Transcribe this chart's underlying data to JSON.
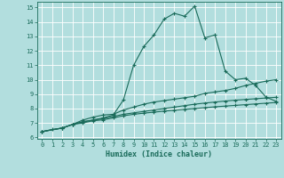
{
  "title": "",
  "xlabel": "Humidex (Indice chaleur)",
  "bg_color": "#b2dede",
  "line_color": "#1a6b5a",
  "grid_color": "#ffffff",
  "xlim": [
    -0.5,
    23.5
  ],
  "ylim": [
    5.9,
    15.4
  ],
  "xticks": [
    0,
    1,
    2,
    3,
    4,
    5,
    6,
    7,
    8,
    9,
    10,
    11,
    12,
    13,
    14,
    15,
    16,
    17,
    18,
    19,
    20,
    21,
    22,
    23
  ],
  "yticks": [
    6,
    7,
    8,
    9,
    10,
    11,
    12,
    13,
    14,
    15
  ],
  "line1_x": [
    0,
    1,
    2,
    3,
    4,
    5,
    6,
    7,
    8,
    9,
    10,
    11,
    12,
    13,
    14,
    15,
    16,
    17,
    18,
    19,
    20,
    21,
    22,
    23
  ],
  "line1_y": [
    6.4,
    6.55,
    6.65,
    6.9,
    7.1,
    7.2,
    7.35,
    7.55,
    8.6,
    11.0,
    12.3,
    13.1,
    14.2,
    14.6,
    14.4,
    15.1,
    12.9,
    13.1,
    10.6,
    10.0,
    10.1,
    9.6,
    8.8,
    8.5
  ],
  "line2_x": [
    0,
    2,
    3,
    4,
    5,
    6,
    7,
    8,
    9,
    10,
    11,
    12,
    13,
    14,
    15,
    16,
    17,
    18,
    19,
    20,
    21,
    22,
    23
  ],
  "line2_y": [
    6.4,
    6.65,
    6.9,
    7.2,
    7.4,
    7.55,
    7.6,
    7.9,
    8.1,
    8.3,
    8.45,
    8.55,
    8.65,
    8.75,
    8.85,
    9.05,
    9.15,
    9.25,
    9.4,
    9.6,
    9.75,
    9.9,
    10.0
  ],
  "line3_x": [
    0,
    2,
    3,
    4,
    5,
    6,
    7,
    8,
    9,
    10,
    11,
    12,
    13,
    14,
    15,
    16,
    17,
    18,
    19,
    20,
    21,
    22,
    23
  ],
  "line3_y": [
    6.4,
    6.65,
    6.9,
    7.05,
    7.2,
    7.3,
    7.45,
    7.6,
    7.7,
    7.8,
    7.9,
    8.0,
    8.1,
    8.2,
    8.3,
    8.38,
    8.45,
    8.52,
    8.58,
    8.63,
    8.68,
    8.73,
    8.78
  ],
  "line4_x": [
    0,
    2,
    3,
    4,
    5,
    6,
    7,
    8,
    9,
    10,
    11,
    12,
    13,
    14,
    15,
    16,
    17,
    18,
    19,
    20,
    21,
    22,
    23
  ],
  "line4_y": [
    6.4,
    6.65,
    6.9,
    7.0,
    7.15,
    7.22,
    7.35,
    7.5,
    7.6,
    7.68,
    7.75,
    7.82,
    7.88,
    7.94,
    8.0,
    8.06,
    8.12,
    8.17,
    8.22,
    8.27,
    8.32,
    8.37,
    8.42
  ]
}
